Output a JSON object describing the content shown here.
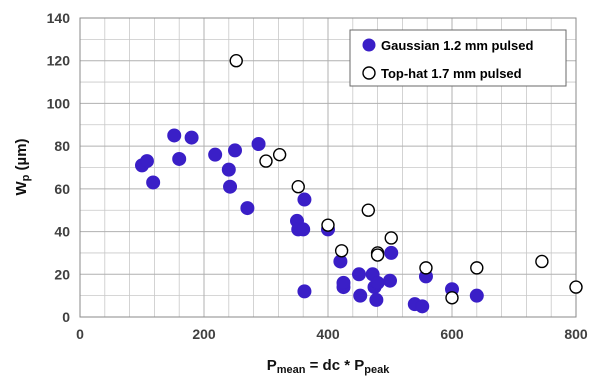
{
  "chart_data": {
    "type": "scatter",
    "xlabel": "P",
    "xlabel_sub": "mean",
    "xlabel_mid": " = dc * P",
    "xlabel_sub2": "peak",
    "ylabel": "W",
    "ylabel_sub": "p",
    "ylabel_unit": " (µm)",
    "xlim": [
      0,
      800
    ],
    "ylim": [
      0,
      140
    ],
    "x_ticks": [
      "0",
      "200",
      "400",
      "600",
      "800"
    ],
    "y_ticks": [
      "0",
      "20",
      "40",
      "60",
      "80",
      "100",
      "120",
      "140"
    ],
    "grid": true,
    "legend_position": "top-right",
    "colors": {
      "gaussian": "#3a1fc7",
      "tophat_edge": "#000000",
      "tophat_fill": "#ffffff",
      "grid": "#b0b0b0"
    },
    "series": [
      {
        "name": "Gaussian 1.2 mm pulsed",
        "marker": "filled-circle",
        "points": [
          [
            100,
            71
          ],
          [
            108,
            73
          ],
          [
            118,
            63
          ],
          [
            152,
            85
          ],
          [
            160,
            74
          ],
          [
            180,
            84
          ],
          [
            218,
            76
          ],
          [
            240,
            69
          ],
          [
            242,
            61
          ],
          [
            250,
            78
          ],
          [
            270,
            51
          ],
          [
            288,
            81
          ],
          [
            350,
            45
          ],
          [
            352,
            41
          ],
          [
            360,
            41
          ],
          [
            362,
            55
          ],
          [
            362,
            12
          ],
          [
            400,
            41
          ],
          [
            420,
            26
          ],
          [
            425,
            14
          ],
          [
            425,
            16
          ],
          [
            450,
            20
          ],
          [
            452,
            10
          ],
          [
            472,
            20
          ],
          [
            475,
            14
          ],
          [
            478,
            8
          ],
          [
            480,
            16
          ],
          [
            500,
            17
          ],
          [
            502,
            30
          ],
          [
            540,
            6
          ],
          [
            552,
            5
          ],
          [
            558,
            19
          ],
          [
            600,
            13
          ],
          [
            640,
            10
          ]
        ]
      },
      {
        "name": "Top-hat 1.7 mm pulsed",
        "marker": "open-circle",
        "points": [
          [
            252,
            120
          ],
          [
            300,
            73
          ],
          [
            322,
            76
          ],
          [
            352,
            61
          ],
          [
            400,
            43
          ],
          [
            422,
            31
          ],
          [
            465,
            50
          ],
          [
            480,
            30
          ],
          [
            480,
            29
          ],
          [
            502,
            37
          ],
          [
            558,
            23
          ],
          [
            600,
            9
          ],
          [
            640,
            23
          ],
          [
            745,
            26
          ],
          [
            800,
            14
          ]
        ]
      }
    ]
  }
}
